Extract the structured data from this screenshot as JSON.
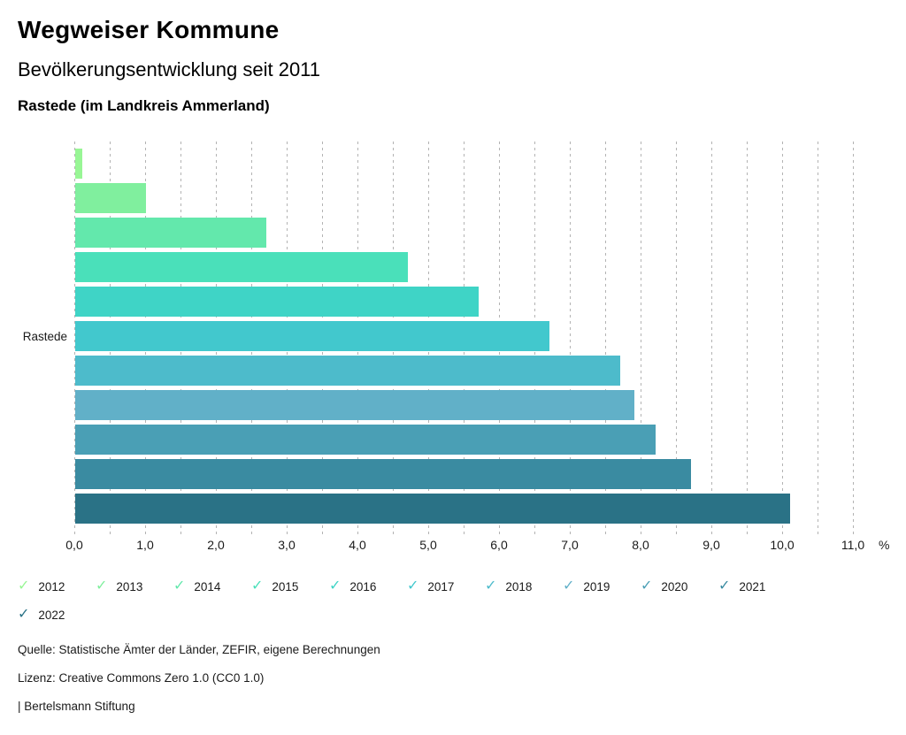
{
  "header": {
    "app_title": "Wegweiser Kommune",
    "chart_title": "Bevölkerungsentwicklung seit 2011",
    "region_subtitle": "Rastede (im Landkreis Ammerland)"
  },
  "chart_data": {
    "type": "bar",
    "orientation": "horizontal",
    "title": "Bevölkerungsentwicklung seit 2011",
    "row_label": "Rastede",
    "categories": [
      "2012",
      "2013",
      "2014",
      "2015",
      "2016",
      "2017",
      "2018",
      "2019",
      "2020",
      "2021",
      "2022"
    ],
    "values": [
      0.1,
      1.0,
      2.7,
      4.7,
      5.7,
      6.7,
      7.7,
      7.9,
      8.2,
      8.7,
      10.1
    ],
    "unit": "%",
    "colors": [
      "#98f695",
      "#80ef9e",
      "#63e8ac",
      "#4ae0ba",
      "#3fd4c6",
      "#42c8cd",
      "#4dbbcb",
      "#61b0c8",
      "#4a9fb5",
      "#3a8ba1",
      "#2a7286"
    ],
    "xlim": [
      0,
      11
    ],
    "grid_step": 0.5,
    "tick_step": 1.0,
    "x_tick_labels": [
      "0,0",
      "1,0",
      "2,0",
      "3,0",
      "4,0",
      "5,0",
      "6,0",
      "7,0",
      "8,0",
      "9,0",
      "10,0",
      "11,0"
    ],
    "axis_unit_label": "%",
    "grid": true,
    "legend_position": "bottom"
  },
  "legend": {
    "check_icon": "✓"
  },
  "footer": {
    "source": "Quelle: Statistische Ämter der Länder, ZEFIR, eigene Berechnungen",
    "license": "Lizenz: Creative Commons Zero 1.0 (CC0 1.0)",
    "attribution": "| Bertelsmann Stiftung"
  }
}
